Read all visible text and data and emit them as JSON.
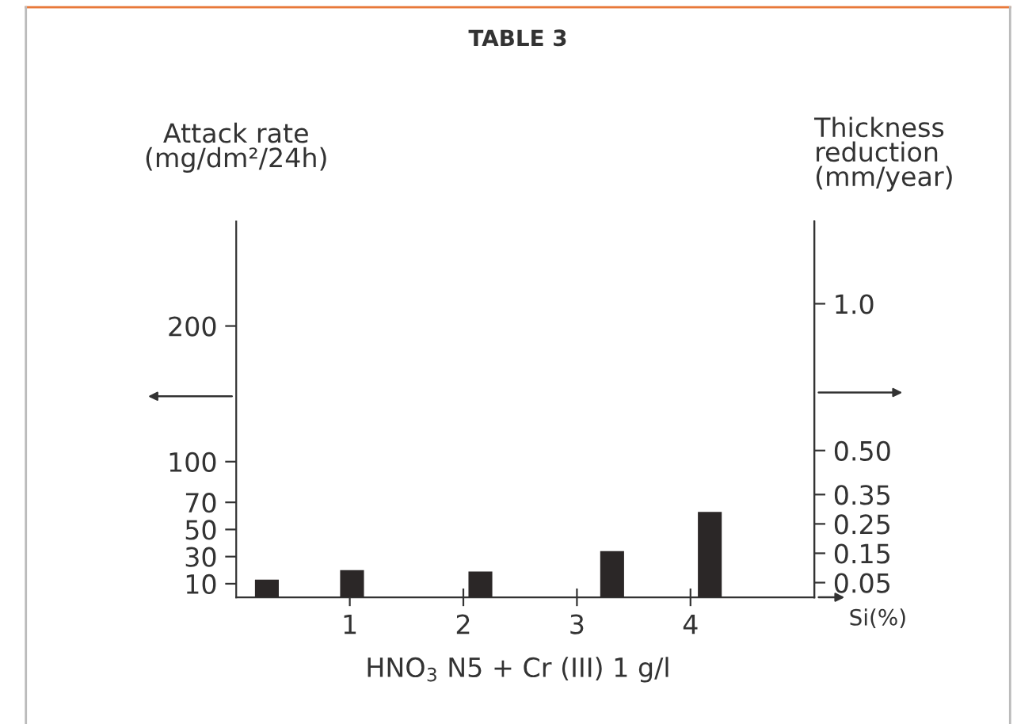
{
  "chart_data": {
    "type": "bar",
    "title": "TABLE 3",
    "xlabel": "Si(%)",
    "ylabel": "Attack rate\n(mg/dm²/24h)",
    "y2label": "Thickness\nreduction\n(mm/year)",
    "x": [
      0.27,
      1.02,
      2.15,
      3.31,
      4.17
    ],
    "series": [
      {
        "color": "#2b2727",
        "values": [
          13,
          20,
          19,
          34,
          63
        ]
      }
    ],
    "xlim": [
      0,
      5.09
    ],
    "xticks": [
      1,
      2,
      3,
      4
    ],
    "ylim": [
      0,
      277
    ],
    "yticks": [
      10,
      30,
      50,
      70,
      100,
      200
    ],
    "y2lim": [
      0,
      1.28
    ],
    "y2ticks": [
      0.05,
      0.15,
      0.25,
      0.35,
      {
        "value": 0.5,
        "label": "0.50"
      },
      {
        "value": 1.0,
        "label": "1.0"
      }
    ],
    "annotations": [
      "HNO$_{3}$ N5 + Cr (III) 1 g/l"
    ],
    "grid": false,
    "legend": false
  }
}
